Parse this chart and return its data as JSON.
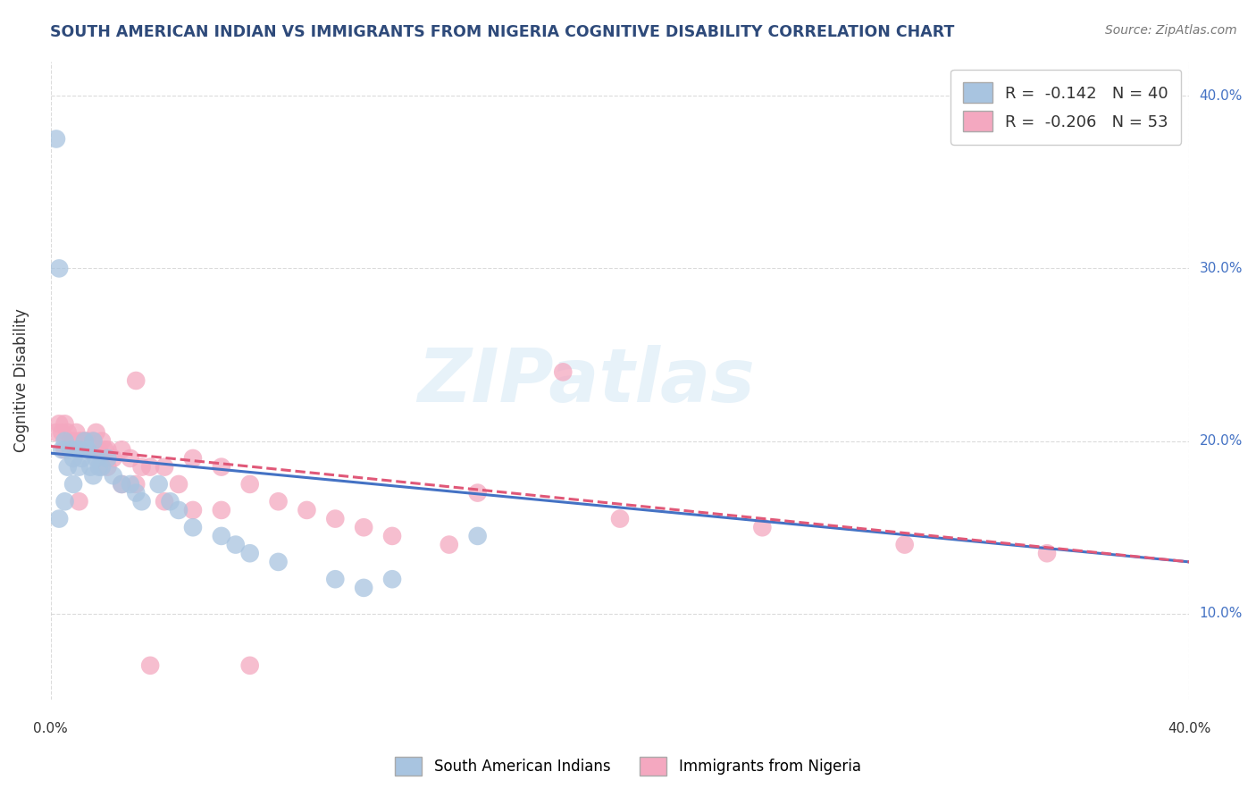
{
  "title": "SOUTH AMERICAN INDIAN VS IMMIGRANTS FROM NIGERIA COGNITIVE DISABILITY CORRELATION CHART",
  "source": "Source: ZipAtlas.com",
  "ylabel": "Cognitive Disability",
  "xlim": [
    0.0,
    0.4
  ],
  "ylim": [
    0.05,
    0.42
  ],
  "yticks": [
    0.1,
    0.2,
    0.3,
    0.4
  ],
  "ytick_labels": [
    "10.0%",
    "20.0%",
    "30.0%",
    "40.0%"
  ],
  "xtick_labels": [
    "0.0%",
    "40.0%"
  ],
  "xtick_pos": [
    0.0,
    0.4
  ],
  "grid_color": "#cccccc",
  "background_color": "#ffffff",
  "series1_label": "South American Indians",
  "series1_color": "#a8c4e0",
  "series1_line_color": "#4472c4",
  "series1_R": -0.142,
  "series1_N": 40,
  "series2_label": "Immigrants from Nigeria",
  "series2_color": "#f4a8c0",
  "series2_line_color": "#e05878",
  "series2_R": -0.206,
  "series2_N": 53,
  "watermark": "ZIPatlas",
  "blue_x": [
    0.002,
    0.003,
    0.004,
    0.005,
    0.006,
    0.007,
    0.008,
    0.009,
    0.01,
    0.01,
    0.011,
    0.012,
    0.013,
    0.014,
    0.015,
    0.016,
    0.017,
    0.018,
    0.02,
    0.022,
    0.025,
    0.028,
    0.03,
    0.032,
    0.038,
    0.042,
    0.045,
    0.05,
    0.06,
    0.065,
    0.07,
    0.08,
    0.1,
    0.11,
    0.12,
    0.15,
    0.003,
    0.005,
    0.008,
    0.015
  ],
  "blue_y": [
    0.375,
    0.3,
    0.195,
    0.2,
    0.185,
    0.195,
    0.19,
    0.195,
    0.195,
    0.185,
    0.19,
    0.2,
    0.195,
    0.185,
    0.2,
    0.19,
    0.185,
    0.185,
    0.19,
    0.18,
    0.175,
    0.175,
    0.17,
    0.165,
    0.175,
    0.165,
    0.16,
    0.15,
    0.145,
    0.14,
    0.135,
    0.13,
    0.12,
    0.115,
    0.12,
    0.145,
    0.155,
    0.165,
    0.175,
    0.18
  ],
  "pink_x": [
    0.002,
    0.003,
    0.004,
    0.005,
    0.006,
    0.007,
    0.008,
    0.009,
    0.01,
    0.011,
    0.012,
    0.013,
    0.014,
    0.015,
    0.016,
    0.017,
    0.018,
    0.019,
    0.02,
    0.022,
    0.025,
    0.028,
    0.03,
    0.032,
    0.035,
    0.04,
    0.045,
    0.05,
    0.06,
    0.07,
    0.08,
    0.09,
    0.1,
    0.11,
    0.12,
    0.14,
    0.15,
    0.18,
    0.005,
    0.01,
    0.015,
    0.02,
    0.025,
    0.03,
    0.04,
    0.05,
    0.06,
    0.35,
    0.3,
    0.25,
    0.2,
    0.035,
    0.07
  ],
  "pink_y": [
    0.205,
    0.21,
    0.205,
    0.21,
    0.205,
    0.2,
    0.2,
    0.205,
    0.2,
    0.2,
    0.2,
    0.2,
    0.195,
    0.2,
    0.205,
    0.195,
    0.2,
    0.195,
    0.195,
    0.19,
    0.195,
    0.19,
    0.235,
    0.185,
    0.185,
    0.185,
    0.175,
    0.19,
    0.185,
    0.175,
    0.165,
    0.16,
    0.155,
    0.15,
    0.145,
    0.14,
    0.17,
    0.24,
    0.195,
    0.165,
    0.195,
    0.185,
    0.175,
    0.175,
    0.165,
    0.16,
    0.16,
    0.135,
    0.14,
    0.15,
    0.155,
    0.07,
    0.07
  ],
  "line_y_start_blue": 0.193,
  "line_y_end_blue": 0.13,
  "line_y_start_pink": 0.197,
  "line_y_end_pink": 0.13
}
